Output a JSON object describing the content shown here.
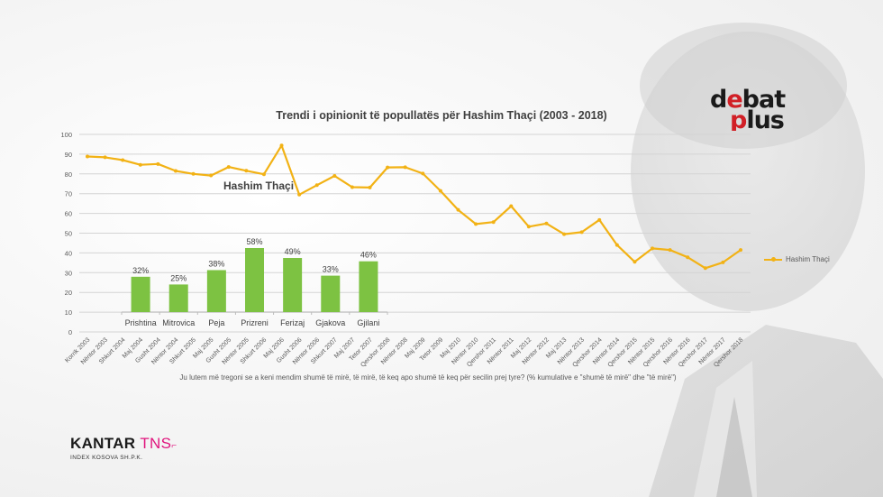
{
  "title": "Trendi i opinionit të popullatës për Hashim Thaçi (2003 - 2018)",
  "annotation": "Hashim Thaçi",
  "legend": {
    "label": "Hashim Thaçi",
    "color": "#f2b215"
  },
  "footnote": "Ju lutem më tregoni se a keni mendim shumë të mirë, të mirë, të keq apo shumë të keq për secilin prej tyre? (% kumulative e \"shumë të mirë\" dhe \"të mirë\")",
  "logos": {
    "debat": "debat",
    "plus": "plus",
    "kantar": "KANTAR",
    "tns": "TNS",
    "kantar_sub": "INDEX KOSOVA SH.P.K."
  },
  "chart_data": [
    {
      "type": "line",
      "title": "Trendi i opinionit të popullatës për Hashim Thaçi (2003 - 2018)",
      "xlabel": "",
      "ylabel": "",
      "ylim": [
        0,
        100
      ],
      "yticks": [
        0,
        10,
        20,
        30,
        40,
        50,
        60,
        70,
        80,
        90,
        100
      ],
      "grid": true,
      "legend_position": "right",
      "categories": [
        "Korrik 2003",
        "Nëntor 2003",
        "Shkurt 2004",
        "Maj 2004",
        "Gusht 2004",
        "Nëntor 2004",
        "Shkurt 2005",
        "Maj 2005",
        "Gusht 2005",
        "Nëntor 2005",
        "Shkurt 2006",
        "Maj 2006",
        "Gusht 2006",
        "Nëntor 2006",
        "Shkurt 2007",
        "Maj 2007",
        "Tetor 2007",
        "Qershor 2008",
        "Nëntor 2008",
        "Maj 2009",
        "Tetor 2009",
        "Maj 2010",
        "Nëntor 2010",
        "Qershor 2011",
        "Nëntor 2011",
        "Maj 2012",
        "Nëntor 2012",
        "Maj 2013",
        "Nëntor 2013",
        "Qershor 2014",
        "Nëntor 2014",
        "Qershor 2015",
        "Nëntor 2015",
        "Qershor 2016",
        "Nëntor 2016",
        "Qershor 2017",
        "Nëntor 2017",
        "Qershor 2018"
      ],
      "series": [
        {
          "name": "Hashim Thaçi",
          "color": "#f2b215",
          "values": [
            88.8,
            88.4,
            87,
            84.6,
            85,
            81.5,
            80,
            79.2,
            83.5,
            81.6,
            79.8,
            94.4,
            69.5,
            74.3,
            79,
            73.3,
            73.1,
            83.3,
            83.4,
            80.2,
            71.4,
            61.8,
            54.6,
            55.6,
            63.7,
            53.3,
            54.9,
            49.5,
            50.5,
            56.7,
            44,
            35.5,
            42.3,
            41.5,
            37.8,
            32.3,
            35.2,
            41.5
          ]
        }
      ]
    },
    {
      "type": "bar",
      "title": "",
      "categories": [
        "Prishtina",
        "Mitrovica",
        "Peja",
        "Prizreni",
        "Ferizaj",
        "Gjakova",
        "Gjilani"
      ],
      "values": [
        32,
        25,
        38,
        58,
        49,
        33,
        46
      ],
      "value_labels": [
        "32%",
        "25%",
        "38%",
        "58%",
        "49%",
        "33%",
        "46%"
      ],
      "color": "#7dc242"
    }
  ]
}
